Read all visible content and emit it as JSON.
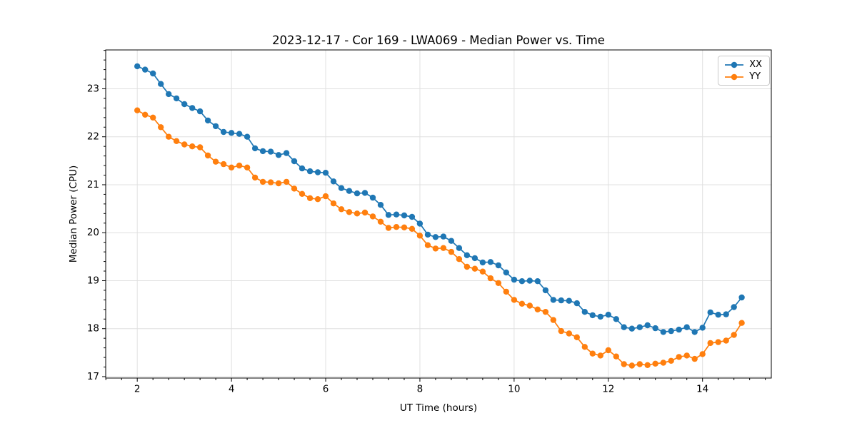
{
  "chart_data": {
    "type": "line",
    "title": "2023-12-17 - Cor 169 - LWA069 - Median Power vs. Time",
    "xlabel": "UT Time (hours)",
    "ylabel": "Median Power (CPU)",
    "xlim": [
      1.33,
      15.46
    ],
    "ylim": [
      16.97,
      23.81
    ],
    "xticks": [
      2,
      4,
      6,
      8,
      10,
      12,
      14
    ],
    "yticks": [
      17,
      18,
      19,
      20,
      21,
      22,
      23
    ],
    "minor_xtick_step": 0.3333,
    "minor_ytick_step": 0.2,
    "grid": true,
    "grid_color": "#e0e0e0",
    "legend_position": "upper right",
    "marker": "o",
    "x": [
      2,
      2.167,
      2.333,
      2.5,
      2.667,
      2.833,
      3,
      3.167,
      3.333,
      3.5,
      3.667,
      3.833,
      4,
      4.167,
      4.333,
      4.5,
      4.667,
      4.833,
      5,
      5.167,
      5.333,
      5.5,
      5.667,
      5.833,
      6,
      6.167,
      6.333,
      6.5,
      6.667,
      6.833,
      7,
      7.167,
      7.333,
      7.5,
      7.667,
      7.833,
      8,
      8.167,
      8.333,
      8.5,
      8.667,
      8.833,
      9,
      9.167,
      9.333,
      9.5,
      9.667,
      9.833,
      10,
      10.167,
      10.333,
      10.5,
      10.667,
      10.833,
      11,
      11.167,
      11.333,
      11.5,
      11.667,
      11.833,
      12,
      12.167,
      12.333,
      12.5,
      12.667,
      12.833,
      13,
      13.167,
      13.333,
      13.5,
      13.667,
      13.833,
      14,
      14.167,
      14.333,
      14.5,
      14.667,
      14.833
    ],
    "series": [
      {
        "name": "XX",
        "color": "#1f77b4",
        "values": [
          23.47,
          23.4,
          23.32,
          23.1,
          22.89,
          22.8,
          22.68,
          22.6,
          22.53,
          22.34,
          22.22,
          22.1,
          22.08,
          22.06,
          22.0,
          21.76,
          21.7,
          21.69,
          21.62,
          21.66,
          21.49,
          21.34,
          21.28,
          21.26,
          21.25,
          21.07,
          20.93,
          20.87,
          20.82,
          20.83,
          20.73,
          20.58,
          20.37,
          20.38,
          20.36,
          20.33,
          20.19,
          19.96,
          19.91,
          19.92,
          19.83,
          19.68,
          19.53,
          19.47,
          19.38,
          19.39,
          19.32,
          19.17,
          19.02,
          18.99,
          19.0,
          18.99,
          18.8,
          18.6,
          18.59,
          18.58,
          18.53,
          18.35,
          18.28,
          18.25,
          18.29,
          18.2,
          18.03,
          18.0,
          18.03,
          18.07,
          18.01,
          17.93,
          17.95,
          17.98,
          18.03,
          17.93,
          18.02,
          18.34,
          18.29,
          18.3,
          18.45,
          18.65
        ]
      },
      {
        "name": "YY",
        "color": "#ff7f0e",
        "values": [
          22.55,
          22.46,
          22.4,
          22.2,
          22.0,
          21.91,
          21.84,
          21.8,
          21.78,
          21.61,
          21.48,
          21.43,
          21.36,
          21.4,
          21.36,
          21.15,
          21.06,
          21.05,
          21.03,
          21.06,
          20.92,
          20.81,
          20.72,
          20.7,
          20.76,
          20.61,
          20.49,
          20.43,
          20.4,
          20.42,
          20.34,
          20.23,
          20.1,
          20.12,
          20.11,
          20.08,
          19.94,
          19.74,
          19.67,
          19.68,
          19.6,
          19.45,
          19.29,
          19.25,
          19.19,
          19.05,
          18.95,
          18.77,
          18.6,
          18.52,
          18.48,
          18.4,
          18.35,
          18.18,
          17.95,
          17.9,
          17.82,
          17.62,
          17.48,
          17.44,
          17.55,
          17.42,
          17.26,
          17.23,
          17.26,
          17.24,
          17.27,
          17.29,
          17.33,
          17.41,
          17.44,
          17.37,
          17.47,
          17.7,
          17.72,
          17.75,
          17.87,
          18.12
        ]
      }
    ]
  }
}
